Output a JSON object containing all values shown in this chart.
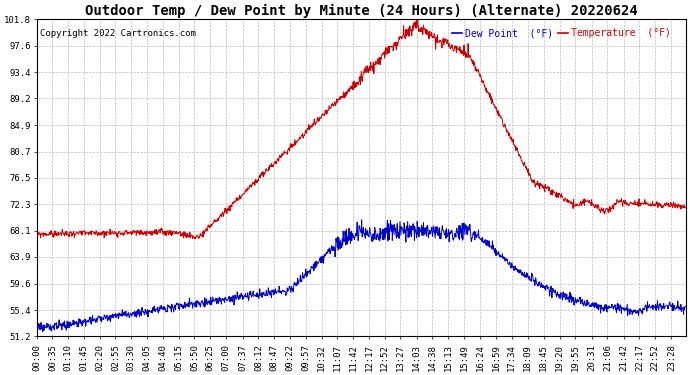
{
  "title": "Outdoor Temp / Dew Point by Minute (24 Hours) (Alternate) 20220624",
  "copyright": "Copyright 2022 Cartronics.com",
  "legend_dew": "Dew Point  (°F)",
  "legend_temp": "Temperature  (°F)",
  "yticks": [
    51.2,
    55.4,
    59.6,
    63.9,
    68.1,
    72.3,
    76.5,
    80.7,
    84.9,
    89.2,
    93.4,
    97.6,
    101.8
  ],
  "ymin": 51.2,
  "ymax": 101.8,
  "color_temp": "#cc0000",
  "color_dew": "#0000cc",
  "background_color": "#ffffff",
  "grid_color": "#bbbbbb",
  "title_fontsize": 10,
  "tick_fontsize": 6.5,
  "copyright_color": "#000000",
  "x_tick_labels": [
    "00:00",
    "00:35",
    "01:10",
    "01:45",
    "02:20",
    "02:55",
    "03:30",
    "04:05",
    "04:40",
    "05:15",
    "05:50",
    "06:25",
    "07:00",
    "07:37",
    "08:12",
    "08:47",
    "09:22",
    "09:57",
    "10:32",
    "11:07",
    "11:42",
    "12:17",
    "12:52",
    "13:27",
    "14:03",
    "14:38",
    "15:13",
    "15:49",
    "16:24",
    "16:59",
    "17:34",
    "18:09",
    "18:45",
    "19:20",
    "19:55",
    "20:31",
    "21:06",
    "21:42",
    "22:17",
    "22:52",
    "23:28"
  ]
}
